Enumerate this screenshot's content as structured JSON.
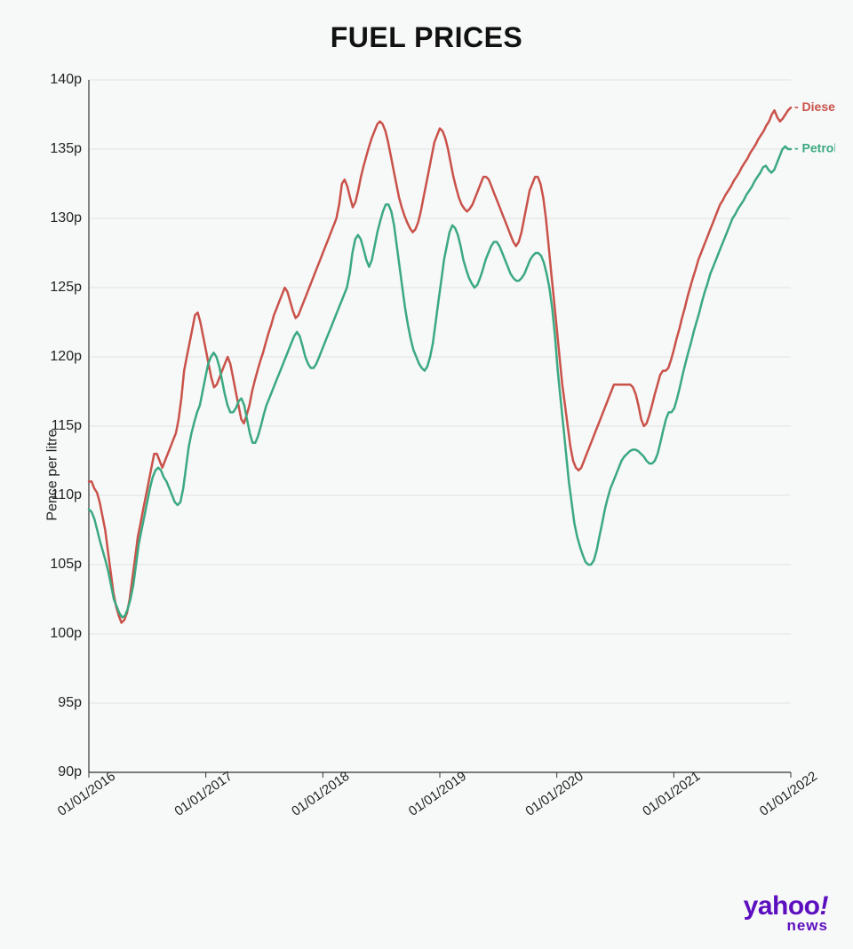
{
  "chart": {
    "type": "line",
    "title": "FUEL PRICES",
    "title_fontsize": 32,
    "title_weight": 900,
    "background_color": "#f7f8f8",
    "grid_color": "#e2e2e2",
    "axis_color": "#333333",
    "axis_width": 1.2,
    "tick_fontsize": 16,
    "tick_color": "#222222",
    "ylabel": "Pence per litre",
    "ylabel_fontsize": 16,
    "ylim": [
      90,
      140
    ],
    "ytick_step": 5,
    "ytick_suffix": "p",
    "xticks": [
      "01/01/2016",
      "01/01/2017",
      "01/01/2018",
      "01/01/2019",
      "01/01/2020",
      "01/01/2021",
      "01/01/2022"
    ],
    "xtick_rotation_deg": -35,
    "x_range": [
      0,
      313
    ],
    "series": [
      {
        "name": "Diesel",
        "color": "#c9524a",
        "line_width": 2.5,
        "legend_prefix": "- ",
        "data": [
          111,
          111,
          110.5,
          110.2,
          109.5,
          108.5,
          107.5,
          106,
          104.5,
          103,
          102,
          101.3,
          100.8,
          101,
          101.5,
          102.5,
          104,
          105.5,
          107,
          108,
          109,
          110,
          111,
          112,
          113,
          113,
          112.5,
          112,
          112.5,
          113,
          113.5,
          114,
          114.5,
          115.5,
          117,
          119,
          120,
          121,
          122,
          123,
          123.2,
          122.5,
          121.5,
          120.5,
          119.5,
          118.5,
          117.8,
          118,
          118.5,
          119,
          119.5,
          120,
          119.5,
          118.5,
          117.5,
          116.5,
          115.5,
          115.2,
          115.8,
          116.5,
          117.5,
          118.3,
          119,
          119.7,
          120.3,
          121,
          121.7,
          122.3,
          123,
          123.5,
          124,
          124.5,
          125,
          124.7,
          124,
          123.3,
          122.8,
          123,
          123.5,
          124,
          124.5,
          125,
          125.5,
          126,
          126.5,
          127,
          127.5,
          128,
          128.5,
          129,
          129.5,
          130,
          131,
          132.5,
          132.8,
          132.3,
          131.5,
          130.8,
          131.2,
          132,
          133,
          133.8,
          134.5,
          135.2,
          135.8,
          136.3,
          136.8,
          137,
          136.8,
          136.3,
          135.5,
          134.5,
          133.5,
          132.5,
          131.5,
          130.8,
          130.2,
          129.7,
          129.3,
          129,
          129.2,
          129.7,
          130.5,
          131.5,
          132.5,
          133.5,
          134.5,
          135.5,
          136,
          136.5,
          136.3,
          135.8,
          135,
          134,
          133,
          132.2,
          131.5,
          131,
          130.7,
          130.5,
          130.7,
          131,
          131.5,
          132,
          132.5,
          133,
          133,
          132.8,
          132.3,
          131.8,
          131.3,
          130.8,
          130.3,
          129.8,
          129.3,
          128.8,
          128.3,
          128,
          128.3,
          129,
          130,
          131,
          132,
          132.5,
          133,
          133,
          132.5,
          131.5,
          130,
          128,
          126,
          124,
          122,
          120,
          118,
          116.5,
          115,
          113.5,
          112.5,
          112,
          111.8,
          112,
          112.5,
          113,
          113.5,
          114,
          114.5,
          115,
          115.5,
          116,
          116.5,
          117,
          117.5,
          118,
          118,
          118,
          118,
          118,
          118,
          118,
          117.8,
          117.3,
          116.5,
          115.5,
          115,
          115.2,
          115.8,
          116.5,
          117.3,
          118,
          118.7,
          119,
          119,
          119.2,
          119.8,
          120.5,
          121.3,
          122,
          122.8,
          123.5,
          124.3,
          125,
          125.7,
          126.3,
          127,
          127.5,
          128,
          128.5,
          129,
          129.5,
          130,
          130.5,
          131,
          131.3,
          131.7,
          132,
          132.3,
          132.7,
          133,
          133.3,
          133.7,
          134,
          134.3,
          134.7,
          135,
          135.3,
          135.7,
          136,
          136.3,
          136.7,
          137,
          137.5,
          137.8,
          137.3,
          137,
          137.2,
          137.5,
          137.8,
          138
        ]
      },
      {
        "name": "Petrol",
        "color": "#3ba981",
        "line_width": 2.5,
        "legend_prefix": "- ",
        "data": [
          109,
          108.8,
          108.3,
          107.5,
          106.7,
          106,
          105.3,
          104.5,
          103.5,
          102.5,
          102,
          101.5,
          101.2,
          101.3,
          101.8,
          102.5,
          103.5,
          105,
          106.5,
          107.5,
          108.5,
          109.5,
          110.5,
          111.3,
          111.8,
          112,
          111.8,
          111.3,
          111,
          110.5,
          110,
          109.5,
          109.3,
          109.5,
          110.5,
          112,
          113.5,
          114.5,
          115.3,
          116,
          116.5,
          117.5,
          118.5,
          119.5,
          120,
          120.3,
          120,
          119.3,
          118.3,
          117.3,
          116.5,
          116,
          116,
          116.3,
          116.8,
          117,
          116.5,
          115.5,
          114.5,
          113.8,
          113.8,
          114.3,
          115,
          115.8,
          116.5,
          117,
          117.5,
          118,
          118.5,
          119,
          119.5,
          120,
          120.5,
          121,
          121.5,
          121.8,
          121.5,
          120.8,
          120,
          119.5,
          119.2,
          119.2,
          119.5,
          120,
          120.5,
          121,
          121.5,
          122,
          122.5,
          123,
          123.5,
          124,
          124.5,
          125,
          126,
          127.5,
          128.5,
          128.8,
          128.5,
          127.8,
          127,
          126.5,
          127,
          128,
          129,
          129.8,
          130.5,
          131,
          131,
          130.5,
          129.5,
          128,
          126.5,
          125,
          123.5,
          122.3,
          121.3,
          120.5,
          120,
          119.5,
          119.2,
          119,
          119.3,
          120,
          121,
          122.5,
          124,
          125.5,
          127,
          128,
          129,
          129.5,
          129.3,
          128.8,
          128,
          127,
          126.3,
          125.7,
          125.3,
          125,
          125.2,
          125.7,
          126.3,
          127,
          127.5,
          128,
          128.3,
          128.3,
          128,
          127.5,
          127,
          126.5,
          126,
          125.7,
          125.5,
          125.5,
          125.7,
          126,
          126.5,
          127,
          127.3,
          127.5,
          127.5,
          127.3,
          126.8,
          126,
          125,
          123.5,
          121.5,
          119,
          117,
          115,
          113,
          111,
          109.5,
          108,
          107,
          106.3,
          105.7,
          105.2,
          105,
          105,
          105.3,
          106,
          107,
          108,
          109,
          109.8,
          110.5,
          111,
          111.5,
          112,
          112.5,
          112.8,
          113,
          113.2,
          113.3,
          113.3,
          113.2,
          113,
          112.8,
          112.5,
          112.3,
          112.3,
          112.5,
          113,
          113.8,
          114.7,
          115.5,
          116,
          116,
          116.3,
          117,
          117.8,
          118.7,
          119.5,
          120.3,
          121,
          121.8,
          122.5,
          123.2,
          124,
          124.7,
          125.3,
          126,
          126.5,
          127,
          127.5,
          128,
          128.5,
          129,
          129.5,
          130,
          130.3,
          130.7,
          131,
          131.3,
          131.7,
          132,
          132.3,
          132.7,
          133,
          133.3,
          133.7,
          133.8,
          133.5,
          133.3,
          133.5,
          134,
          134.5,
          135,
          135.2,
          135,
          135
        ]
      }
    ],
    "logo": {
      "brand": "yahoo",
      "sub": "news",
      "color": "#5c0fbf",
      "brand_fontsize": 30,
      "sub_fontsize": 17
    }
  }
}
